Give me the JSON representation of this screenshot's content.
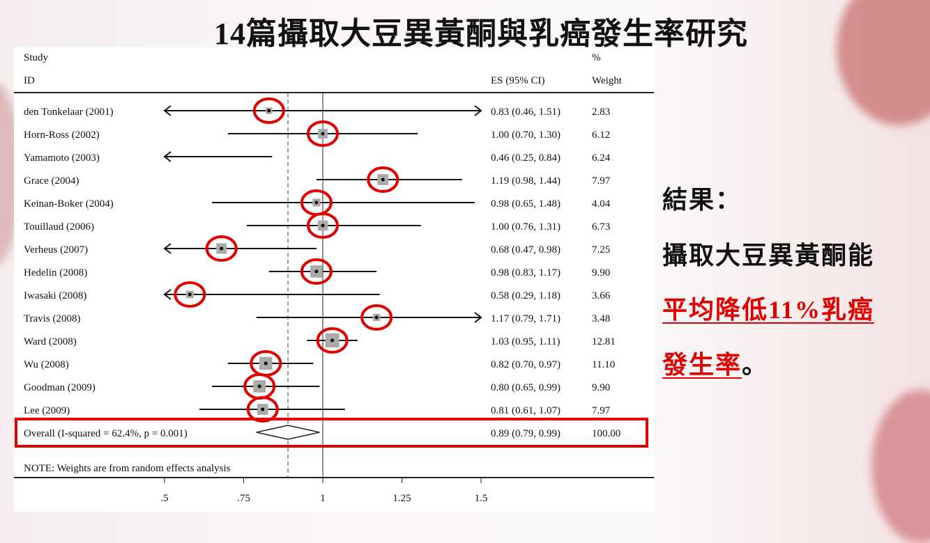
{
  "slide": {
    "title": "14篇攝取大豆異黃酮與乳癌發生率研究",
    "result_heading": "結果：",
    "result_line1": "攝取大豆異黃酮能",
    "result_line2_red": "平均降低11%乳癌",
    "result_line3_red": "發生率",
    "result_line3_tail": "。",
    "highlight_color": "#e00000"
  },
  "chart_data": {
    "type": "forest",
    "headers": {
      "study_top": "Study",
      "study": "ID",
      "es": "ES (95% CI)",
      "weight_top": "%",
      "weight": "Weight"
    },
    "xlim": [
      0.5,
      1.5
    ],
    "xticks": [
      0.5,
      0.75,
      1,
      1.25,
      1.5
    ],
    "xtick_labels": [
      ".5",
      ".75",
      "1",
      "1.25",
      "1.5"
    ],
    "null_line": 1,
    "studies": [
      {
        "id": "den Tonkelaar (2001)",
        "es": 0.83,
        "lo": 0.46,
        "hi": 1.51,
        "es_text": "0.83 (0.46, 1.51)",
        "weight": "2.83",
        "circled": true
      },
      {
        "id": "Horn-Ross (2002)",
        "es": 1.0,
        "lo": 0.7,
        "hi": 1.3,
        "es_text": "1.00 (0.70, 1.30)",
        "weight": "6.12",
        "circled": true
      },
      {
        "id": "Yamamoto (2003)",
        "es": 0.46,
        "lo": 0.25,
        "hi": 0.84,
        "es_text": "0.46 (0.25, 0.84)",
        "weight": "6.24",
        "circled": false
      },
      {
        "id": "Grace (2004)",
        "es": 1.19,
        "lo": 0.98,
        "hi": 1.44,
        "es_text": "1.19 (0.98, 1.44)",
        "weight": "7.97",
        "circled": true
      },
      {
        "id": "Keinan-Boker (2004)",
        "es": 0.98,
        "lo": 0.65,
        "hi": 1.48,
        "es_text": "0.98 (0.65, 1.48)",
        "weight": "4.04",
        "circled": true
      },
      {
        "id": "Touillaud (2006)",
        "es": 1.0,
        "lo": 0.76,
        "hi": 1.31,
        "es_text": "1.00 (0.76, 1.31)",
        "weight": "6.73",
        "circled": true
      },
      {
        "id": "Verheus (2007)",
        "es": 0.68,
        "lo": 0.47,
        "hi": 0.98,
        "es_text": "0.68 (0.47, 0.98)",
        "weight": "7.25",
        "circled": true
      },
      {
        "id": "Hedelin (2008)",
        "es": 0.98,
        "lo": 0.83,
        "hi": 1.17,
        "es_text": "0.98 (0.83, 1.17)",
        "weight": "9.90",
        "circled": true
      },
      {
        "id": "Iwasaki (2008)",
        "es": 0.58,
        "lo": 0.29,
        "hi": 1.18,
        "es_text": "0.58 (0.29, 1.18)",
        "weight": "3.66",
        "circled": true
      },
      {
        "id": "Travis (2008)",
        "es": 1.17,
        "lo": 0.79,
        "hi": 1.71,
        "es_text": "1.17 (0.79, 1.71)",
        "weight": "3.48",
        "circled": true
      },
      {
        "id": "Ward (2008)",
        "es": 1.03,
        "lo": 0.95,
        "hi": 1.11,
        "es_text": "1.03 (0.95, 1.11)",
        "weight": "12.81",
        "circled": true
      },
      {
        "id": "Wu (2008)",
        "es": 0.82,
        "lo": 0.7,
        "hi": 0.97,
        "es_text": "0.82 (0.70, 0.97)",
        "weight": "11.10",
        "circled": true
      },
      {
        "id": "Goodman (2009)",
        "es": 0.8,
        "lo": 0.65,
        "hi": 0.99,
        "es_text": "0.80 (0.65, 0.99)",
        "weight": "9.90",
        "circled": true
      },
      {
        "id": "Lee (2009)",
        "es": 0.81,
        "lo": 0.61,
        "hi": 1.07,
        "es_text": "0.81 (0.61, 1.07)",
        "weight": "7.97",
        "circled": true
      }
    ],
    "overall": {
      "label": "Overall  (I-squared = 62.4%, p = 0.001)",
      "es": 0.89,
      "lo": 0.79,
      "hi": 0.99,
      "es_text": "0.89 (0.79, 0.99)",
      "weight": "100.00",
      "highlighted": true
    },
    "note": "NOTE: Weights are from random effects analysis"
  }
}
